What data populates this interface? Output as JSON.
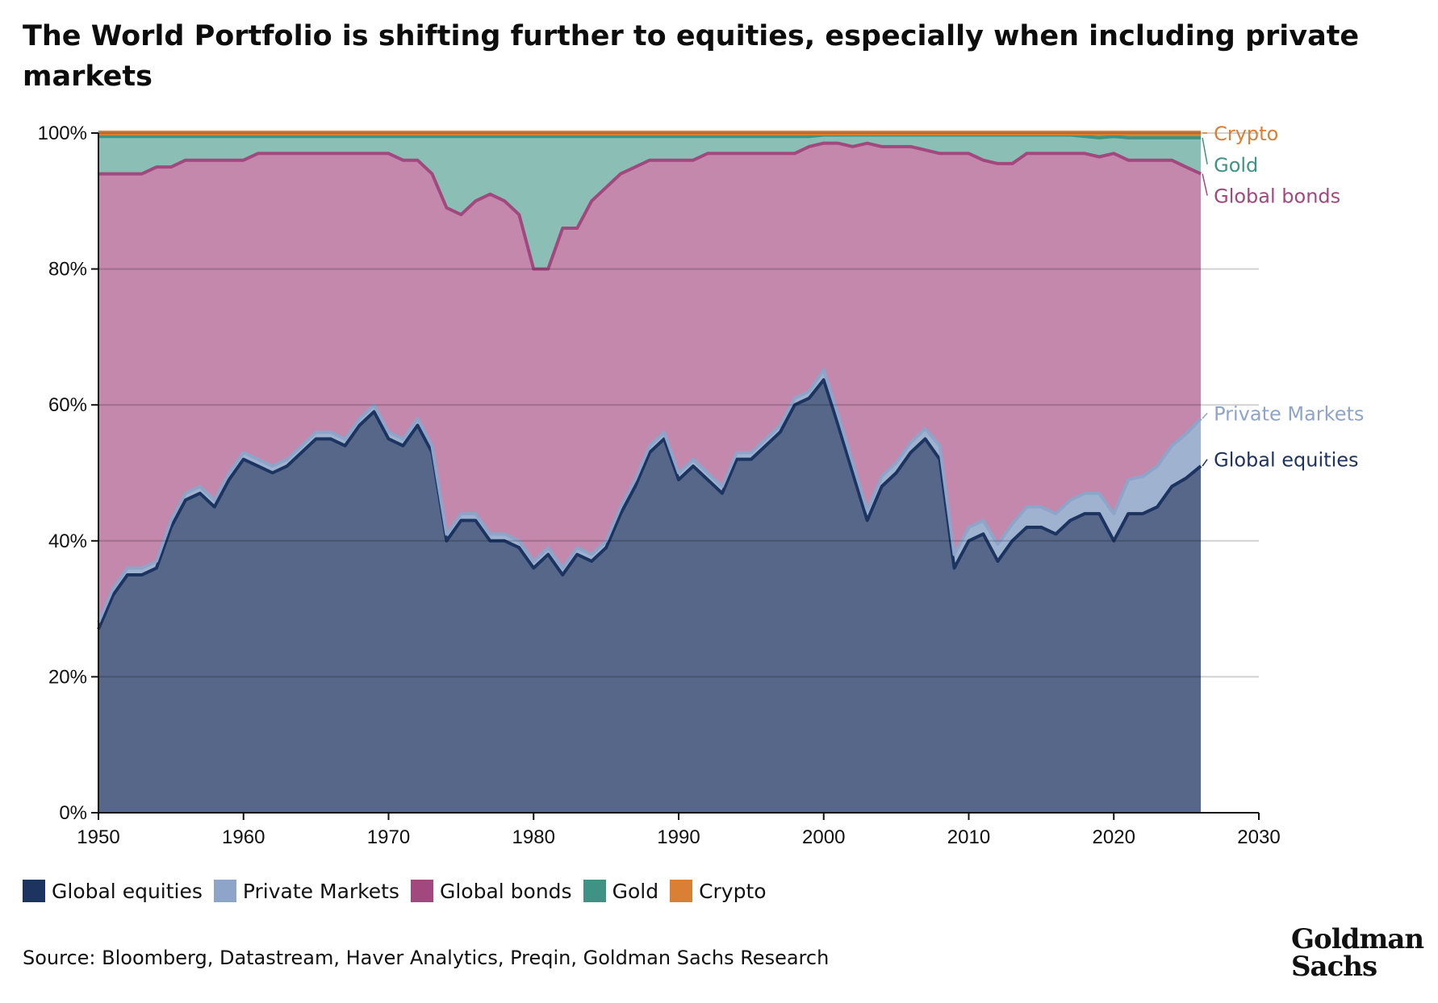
{
  "chart_data": {
    "type": "area",
    "stacked": true,
    "normalized": true,
    "title": "The World Portfolio is shifting further to equities, especially when including private markets",
    "subtitle": "",
    "xlabel": "",
    "ylabel": "",
    "xlim": [
      1950,
      2030
    ],
    "ylim": [
      0,
      100
    ],
    "x_ticks": [
      "1950",
      "1960",
      "1970",
      "1980",
      "1990",
      "2000",
      "2010",
      "2020",
      "2030"
    ],
    "y_ticks": [
      "0%",
      "20%",
      "40%",
      "60%",
      "80%",
      "100%"
    ],
    "grid": "horizontal",
    "legend_position": "bottom-left",
    "x": [
      1950,
      1951,
      1952,
      1953,
      1954,
      1955,
      1956,
      1957,
      1958,
      1959,
      1960,
      1961,
      1962,
      1963,
      1964,
      1965,
      1966,
      1967,
      1968,
      1969,
      1970,
      1971,
      1972,
      1973,
      1974,
      1975,
      1976,
      1977,
      1978,
      1979,
      1980,
      1981,
      1982,
      1983,
      1984,
      1985,
      1986,
      1987,
      1988,
      1989,
      1990,
      1991,
      1992,
      1993,
      1994,
      1995,
      1996,
      1997,
      1998,
      1999,
      2000,
      2001,
      2002,
      2003,
      2004,
      2005,
      2006,
      2007,
      2008,
      2009,
      2010,
      2011,
      2012,
      2013,
      2014,
      2015,
      2016,
      2017,
      2018,
      2019,
      2020,
      2021,
      2022,
      2023,
      2024,
      2025,
      2026
    ],
    "series": [
      {
        "name": "Global equities",
        "color": "#1d3461",
        "values": [
          27,
          32,
          35,
          35,
          36,
          42,
          46,
          47,
          45,
          49,
          52,
          51,
          50,
          51,
          53,
          55,
          55,
          54,
          57,
          59,
          55,
          54,
          57,
          53,
          40,
          43,
          43,
          40,
          40,
          39,
          36,
          38,
          35,
          38,
          37,
          39,
          44,
          48,
          53,
          55,
          49,
          51,
          49,
          47,
          52,
          52,
          54,
          56,
          60,
          61,
          64,
          57,
          50,
          43,
          48,
          50,
          53,
          55,
          52,
          36,
          40,
          41,
          37,
          40,
          42,
          42,
          41,
          43,
          44,
          44,
          40,
          44,
          44,
          45,
          48,
          49,
          51
        ]
      },
      {
        "name": "Private Markets",
        "color": "#8ea4c8",
        "values": [
          1,
          1,
          1,
          1,
          1,
          1,
          1,
          1,
          1,
          1,
          1,
          1,
          1,
          1,
          1,
          1,
          1,
          1,
          1,
          1,
          1,
          1,
          1,
          1,
          1,
          1,
          1,
          1,
          1,
          1,
          1,
          1,
          1,
          1,
          1,
          1,
          1,
          1,
          1,
          1,
          1,
          1,
          1,
          1,
          1,
          1,
          1,
          1,
          1,
          1,
          1.5,
          1.5,
          1.5,
          1.5,
          1.5,
          1.5,
          1.5,
          1.5,
          2,
          2,
          2,
          2,
          2.5,
          2.5,
          3,
          3,
          3,
          3,
          3,
          3,
          4,
          5,
          5.5,
          6,
          6,
          6.5,
          7
        ]
      },
      {
        "name": "Global bonds",
        "color": "#a3487f",
        "values": [
          66,
          61,
          58,
          58,
          58,
          52,
          49,
          48,
          50,
          46,
          43,
          45,
          46,
          45,
          43,
          41,
          41,
          42,
          39,
          37,
          41,
          41,
          38,
          40,
          48,
          44,
          46,
          50,
          49,
          48,
          43,
          41,
          50,
          47,
          52,
          52,
          49,
          46,
          42,
          40,
          46,
          44,
          47,
          49,
          44,
          44,
          42,
          40,
          36,
          36,
          33.5,
          40,
          46.5,
          54,
          48.5,
          46.5,
          43.5,
          41,
          43,
          59,
          55,
          53,
          56,
          53,
          52,
          52,
          53,
          51,
          50,
          49.5,
          53,
          47,
          46.5,
          45,
          42,
          39,
          36
        ]
      },
      {
        "name": "Gold",
        "color": "#3e9384",
        "values": [
          5.5,
          5.5,
          5.5,
          5.5,
          4.5,
          4.5,
          3.5,
          3.5,
          3.5,
          3.5,
          3.5,
          2.5,
          2.5,
          2.5,
          2.5,
          2.5,
          2.5,
          2.5,
          2.5,
          2.5,
          2.5,
          3.5,
          3.5,
          5.5,
          10.5,
          11.5,
          9.5,
          8.5,
          9.5,
          11.5,
          19.5,
          19.5,
          13.5,
          13.5,
          9.5,
          7.5,
          5.5,
          4.5,
          3.5,
          3.5,
          3.5,
          3.5,
          2.5,
          2.5,
          2.5,
          2.5,
          2.5,
          2.5,
          2.5,
          1.5,
          1.2,
          1.2,
          1.7,
          1.2,
          1.7,
          1.7,
          1.7,
          2.2,
          2.7,
          2.7,
          2.7,
          3.7,
          4.2,
          4.2,
          2.7,
          2.7,
          2.7,
          2.7,
          2.5,
          2.8,
          2.5,
          3.3,
          3.3,
          3.3,
          3.3,
          4.3,
          5.3
        ]
      },
      {
        "name": "Crypto",
        "color": "#d98035",
        "values": [
          0.5,
          0.5,
          0.5,
          0.5,
          0.5,
          0.5,
          0.5,
          0.5,
          0.5,
          0.5,
          0.5,
          0.5,
          0.5,
          0.5,
          0.5,
          0.5,
          0.5,
          0.5,
          0.5,
          0.5,
          0.5,
          0.5,
          0.5,
          0.5,
          0.5,
          0.5,
          0.5,
          0.5,
          0.5,
          0.5,
          0.5,
          0.5,
          0.5,
          0.5,
          0.5,
          0.5,
          0.5,
          0.5,
          0.5,
          0.5,
          0.5,
          0.5,
          0.5,
          0.5,
          0.5,
          0.5,
          0.5,
          0.5,
          0.5,
          0.5,
          0.3,
          0.3,
          0.3,
          0.3,
          0.3,
          0.3,
          0.3,
          0.3,
          0.3,
          0.3,
          0.3,
          0.3,
          0.3,
          0.3,
          0.3,
          0.3,
          0.3,
          0.3,
          0.5,
          0.7,
          0.5,
          0.7,
          0.7,
          0.7,
          0.7,
          0.7,
          0.7
        ]
      }
    ]
  },
  "end_labels": [
    {
      "text": "Crypto",
      "series": "Crypto",
      "color": "#d98035"
    },
    {
      "text": "Gold",
      "series": "Gold",
      "color": "#3e9384"
    },
    {
      "text": "Global bonds",
      "series": "Global bonds",
      "color": "#a3487f"
    },
    {
      "text": "Private Markets",
      "series": "Private Markets",
      "color": "#8ea4c8"
    },
    {
      "text": "Global equities",
      "series": "Global equities",
      "color": "#1d3461"
    }
  ],
  "legend": [
    {
      "label": "Global equities",
      "color": "#1d3461"
    },
    {
      "label": "Private Markets",
      "color": "#8ea4c8"
    },
    {
      "label": "Global bonds",
      "color": "#a3487f"
    },
    {
      "label": "Gold",
      "color": "#3e9384"
    },
    {
      "label": "Crypto",
      "color": "#d98035"
    }
  ],
  "source": "Source: Bloomberg, Datastream, Haver Analytics, Preqin, Goldman Sachs Research",
  "logo": {
    "line1": "Goldman",
    "line2": "Sachs"
  }
}
